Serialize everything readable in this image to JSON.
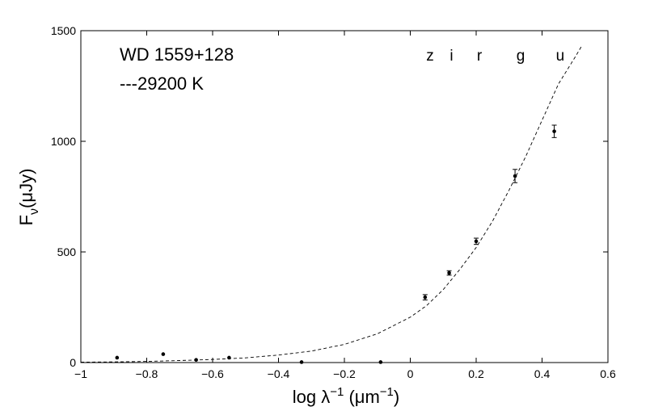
{
  "chart_data": {
    "type": "scatter",
    "xlim": [
      -1,
      0.6
    ],
    "ylim": [
      0,
      1500
    ],
    "x_ticks": [
      -1,
      -0.8,
      -0.6,
      -0.4,
      -0.2,
      0,
      0.2,
      0.4,
      0.6
    ],
    "x_tick_labels": [
      "−1",
      "−0.8",
      "−0.6",
      "−0.4",
      "−0.2",
      "0",
      "0.2",
      "0.4",
      "0.6"
    ],
    "y_ticks": [
      0,
      500,
      1000,
      1500
    ],
    "y_tick_labels": [
      "0",
      "500",
      "1000",
      "1500"
    ],
    "xlabel": {
      "base": "log λ",
      "sup1": "−1",
      "unit": " (μm",
      "sup2": "−1",
      "close": ")"
    },
    "ylabel": {
      "base": "F",
      "sub": "ν",
      "unit": "(μJy)"
    },
    "annotations": {
      "object": "WD 1559+128",
      "model": "---29200  K"
    },
    "band_labels": [
      {
        "text": "z",
        "x": 0.06
      },
      {
        "text": "i",
        "x": 0.125
      },
      {
        "text": "r",
        "x": 0.21
      },
      {
        "text": "g",
        "x": 0.335
      },
      {
        "text": "u",
        "x": 0.455
      }
    ],
    "series": [
      {
        "type": "scatter",
        "points": [
          {
            "x": -0.89,
            "y": 22
          },
          {
            "x": -0.75,
            "y": 38
          },
          {
            "x": -0.65,
            "y": 12
          },
          {
            "x": -0.55,
            "y": 22
          },
          {
            "x": -0.33,
            "y": 2
          },
          {
            "x": -0.09,
            "y": 2
          },
          {
            "x": 0.045,
            "y": 295,
            "err": 12
          },
          {
            "x": 0.118,
            "y": 405,
            "err": 10
          },
          {
            "x": 0.2,
            "y": 548,
            "err": 14
          },
          {
            "x": 0.318,
            "y": 843,
            "err": 30
          },
          {
            "x": 0.437,
            "y": 1045,
            "err": 28
          }
        ]
      },
      {
        "type": "line",
        "style": "dashed",
        "x": [
          -1.0,
          -0.9,
          -0.8,
          -0.7,
          -0.6,
          -0.5,
          -0.4,
          -0.3,
          -0.2,
          -0.1,
          0.0,
          0.05,
          0.1,
          0.15,
          0.2,
          0.25,
          0.3,
          0.35,
          0.4,
          0.45,
          0.5,
          0.52
        ],
        "y": [
          2,
          3,
          5,
          9,
          14,
          21,
          34,
          52,
          82,
          130,
          205,
          258,
          330,
          420,
          520,
          640,
          780,
          930,
          1095,
          1260,
          1380,
          1430
        ]
      }
    ]
  }
}
